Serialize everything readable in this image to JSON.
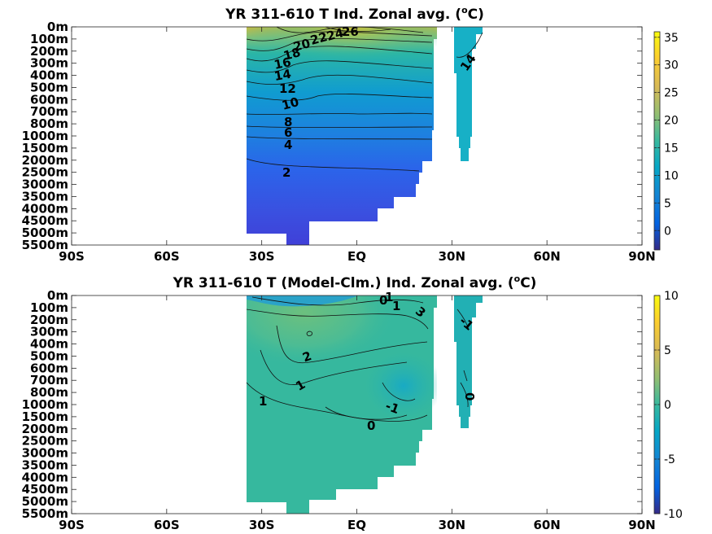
{
  "chart_data": [
    {
      "type": "heatmap",
      "title": "YR 311-610 T Ind. Zonal avg. (",
      "title_sup": "o",
      "title_unit": "C)",
      "x_ticks": [
        "90S",
        "60S",
        "30S",
        "EQ",
        "30N",
        "60N",
        "90N"
      ],
      "x_values": [
        -90,
        -60,
        -30,
        0,
        30,
        60,
        90
      ],
      "y_ticks": [
        "0m",
        "100m",
        "200m",
        "300m",
        "400m",
        "500m",
        "600m",
        "700m",
        "800m",
        "1000m",
        "1500m",
        "2000m",
        "2500m",
        "3000m",
        "3500m",
        "4000m",
        "4500m",
        "5000m",
        "5500m"
      ],
      "colorbar_ticks": [
        "35",
        "30",
        "25",
        "20",
        "15",
        "10",
        "5",
        "0"
      ],
      "colorbar_values": [
        35,
        30,
        25,
        20,
        15,
        10,
        5,
        0
      ],
      "clim": [
        -3.5,
        36
      ],
      "contour_labels": [
        "26",
        "24",
        "22",
        "20",
        "18",
        "16",
        "14",
        "12",
        "10",
        "8",
        "6",
        "4",
        "2",
        "14"
      ],
      "contour_levels": [
        26,
        24,
        22,
        20,
        18,
        16,
        14,
        12,
        10,
        8,
        6,
        4,
        2,
        14
      ]
    },
    {
      "type": "heatmap",
      "title": "YR 311-610 T (Model-Clm.) Ind. Zonal avg. (",
      "title_sup": "o",
      "title_unit": "C)",
      "x_ticks": [
        "90S",
        "60S",
        "30S",
        "EQ",
        "30N",
        "60N",
        "90N"
      ],
      "x_values": [
        -90,
        -60,
        -30,
        0,
        30,
        60,
        90
      ],
      "y_ticks": [
        "0m",
        "100m",
        "200m",
        "300m",
        "400m",
        "500m",
        "600m",
        "700m",
        "800m",
        "1000m",
        "1500m",
        "2000m",
        "2500m",
        "3000m",
        "3500m",
        "4000m",
        "4500m",
        "5000m",
        "5500m"
      ],
      "colorbar_ticks": [
        "10",
        "5",
        "0",
        "-5",
        "-10"
      ],
      "colorbar_values": [
        10,
        5,
        0,
        -5,
        -10
      ],
      "clim": [
        -10,
        10
      ],
      "contour_labels": [
        "1",
        "0",
        "1",
        "3",
        "-1",
        "2",
        "1",
        "1",
        "0",
        "-1",
        "0"
      ],
      "contour_levels": [
        1,
        0,
        1,
        3,
        -1,
        2,
        1,
        1,
        0,
        -1,
        0
      ]
    }
  ]
}
